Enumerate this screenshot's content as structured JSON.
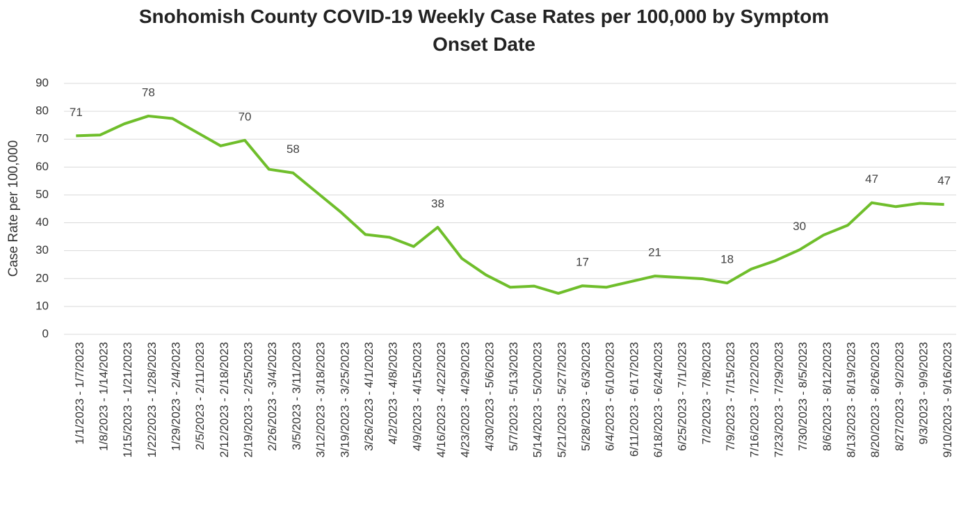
{
  "chart_data": {
    "type": "line",
    "title": "Snohomish County COVID-19 Weekly Case Rates per 100,000 by Symptom Onset Date",
    "y_label": "Case Rate per 100,000",
    "categories": [
      "1/1/2023 - 1/7/2023",
      "1/8/2023 - 1/14/2023",
      "1/15/2023 - 1/21/2023",
      "1/22/2023 - 1/28/2023",
      "1/29/2023 - 2/4/2023",
      "2/5/2023 - 2/11/2023",
      "2/12/2023 - 2/18/2023",
      "2/19/2023 - 2/25/2023",
      "2/26/2023 - 3/4/2023",
      "3/5/2023 - 3/11/2023",
      "3/12/2023 - 3/18/2023",
      "3/19/2023 - 3/25/2023",
      "3/26/2023 - 4/1/2023",
      "4/2/2023 - 4/8/2023",
      "4/9/2023 - 4/15/2023",
      "4/16/2023 - 4/22/2023",
      "4/23/2023 - 4/29/2023",
      "4/30/2023 - 5/6/2023",
      "5/7/2023 - 5/13/2023",
      "5/14/2023 - 5/20/2023",
      "5/21/2023 - 5/27/2023",
      "5/28/2023 - 6/3/2023",
      "6/4/2023 - 6/10/2023",
      "6/11/2023 - 6/17/2023",
      "6/18/2023 - 6/24/2023",
      "6/25/2023 - 7/1/2023",
      "7/2/2023 - 7/8/2023",
      "7/9/2023 - 7/15/2023",
      "7/16/2023 - 7/22/2023",
      "7/23/2023 - 7/29/2023",
      "7/30/2023 - 8/5/2023",
      "8/6/2023 - 8/12/2023",
      "8/13/2023 - 8/19/2023",
      "8/20/2023 - 8/26/2023",
      "8/27/2023 - 9/2/2023",
      "9/3/2023 - 9/9/2023",
      "9/10/2023 - 9/16/2023"
    ],
    "values": [
      71.2,
      71.5,
      75.5,
      78.3,
      77.4,
      72.5,
      67.6,
      69.6,
      59.2,
      57.9,
      50.8,
      43.7,
      35.8,
      34.8,
      31.5,
      38.4,
      27.2,
      21.3,
      16.9,
      17.3,
      14.7,
      17.4,
      16.9,
      18.9,
      20.9,
      20.4,
      19.9,
      18.4,
      23.4,
      26.4,
      30.3,
      35.6,
      39.1,
      47.2,
      45.8,
      47.0,
      46.6
    ],
    "value_labels": [
      "71",
      null,
      null,
      "78",
      null,
      null,
      null,
      "70",
      null,
      "58",
      null,
      null,
      null,
      null,
      null,
      "38",
      null,
      null,
      null,
      null,
      null,
      "17",
      null,
      null,
      "21",
      null,
      null,
      "18",
      null,
      null,
      "30",
      null,
      null,
      "47",
      null,
      null,
      "47"
    ],
    "color": "#6fbe2b",
    "ylim": [
      0,
      90
    ],
    "yticks": [
      0,
      10,
      20,
      30,
      40,
      50,
      60,
      70,
      80,
      90
    ],
    "grid": true
  }
}
